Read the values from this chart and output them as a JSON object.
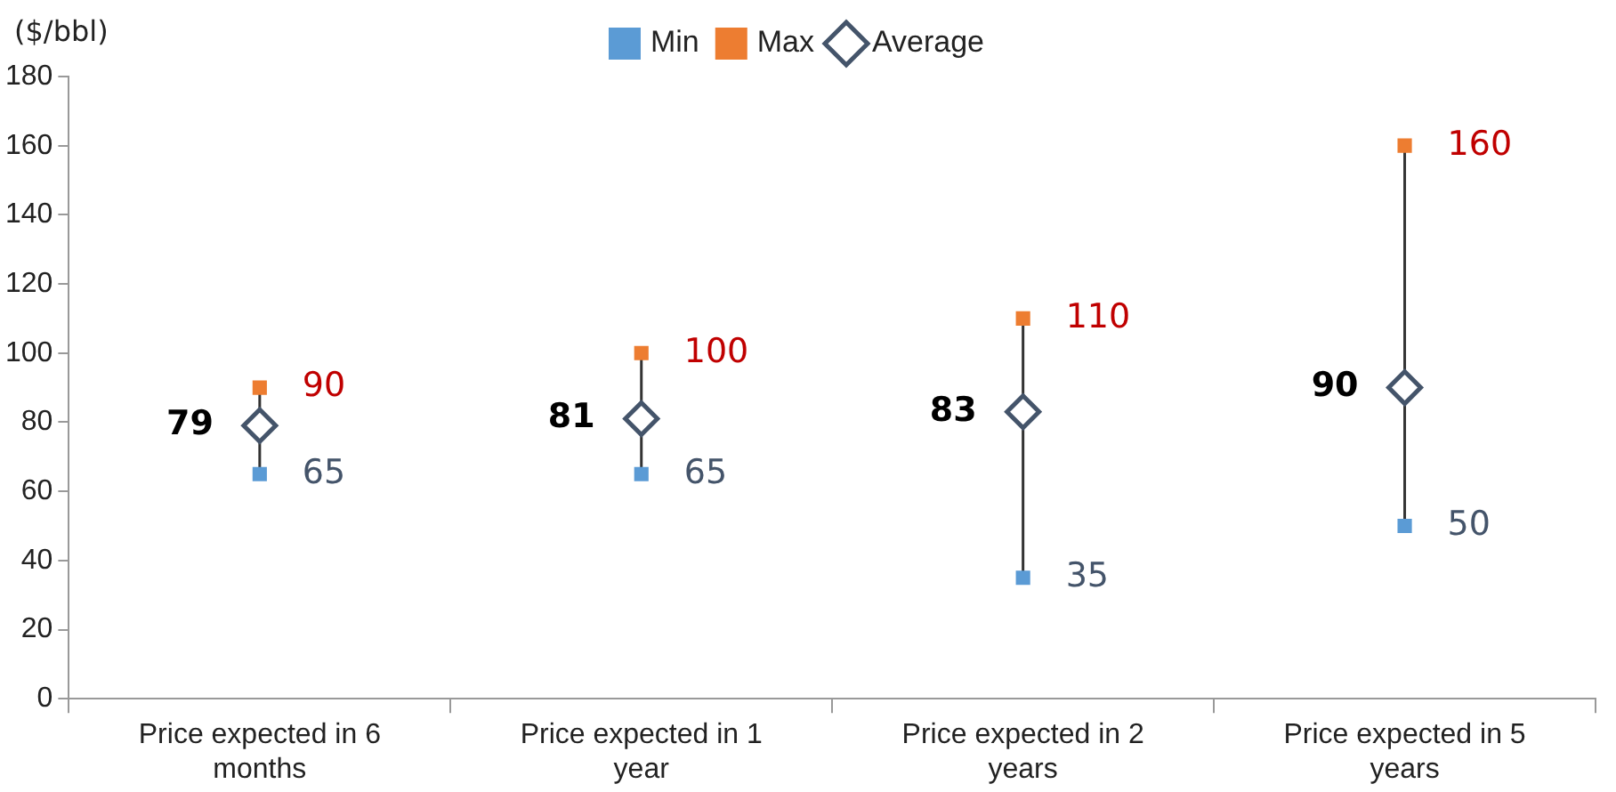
{
  "chart_data": {
    "type": "scatter",
    "ylabel": "($/bbl)",
    "categories": [
      "Price expected in 6 months",
      "Price expected in 1 year",
      "Price expected in 2 years",
      "Price expected in 5 years"
    ],
    "series": [
      {
        "name": "Min",
        "color": "#5b9bd5",
        "marker": "square",
        "values": [
          65,
          65,
          35,
          50
        ]
      },
      {
        "name": "Max",
        "color": "#ed7d31",
        "marker": "square",
        "values": [
          90,
          100,
          110,
          160
        ]
      },
      {
        "name": "Average",
        "color": "#44546a",
        "marker": "diamond",
        "values": [
          79,
          81,
          83,
          90
        ]
      }
    ],
    "ylim": [
      0,
      180
    ],
    "yticks": [
      0,
      20,
      40,
      60,
      80,
      100,
      120,
      140,
      160,
      180
    ],
    "grid": false,
    "legend": "top",
    "data_labels": true
  }
}
